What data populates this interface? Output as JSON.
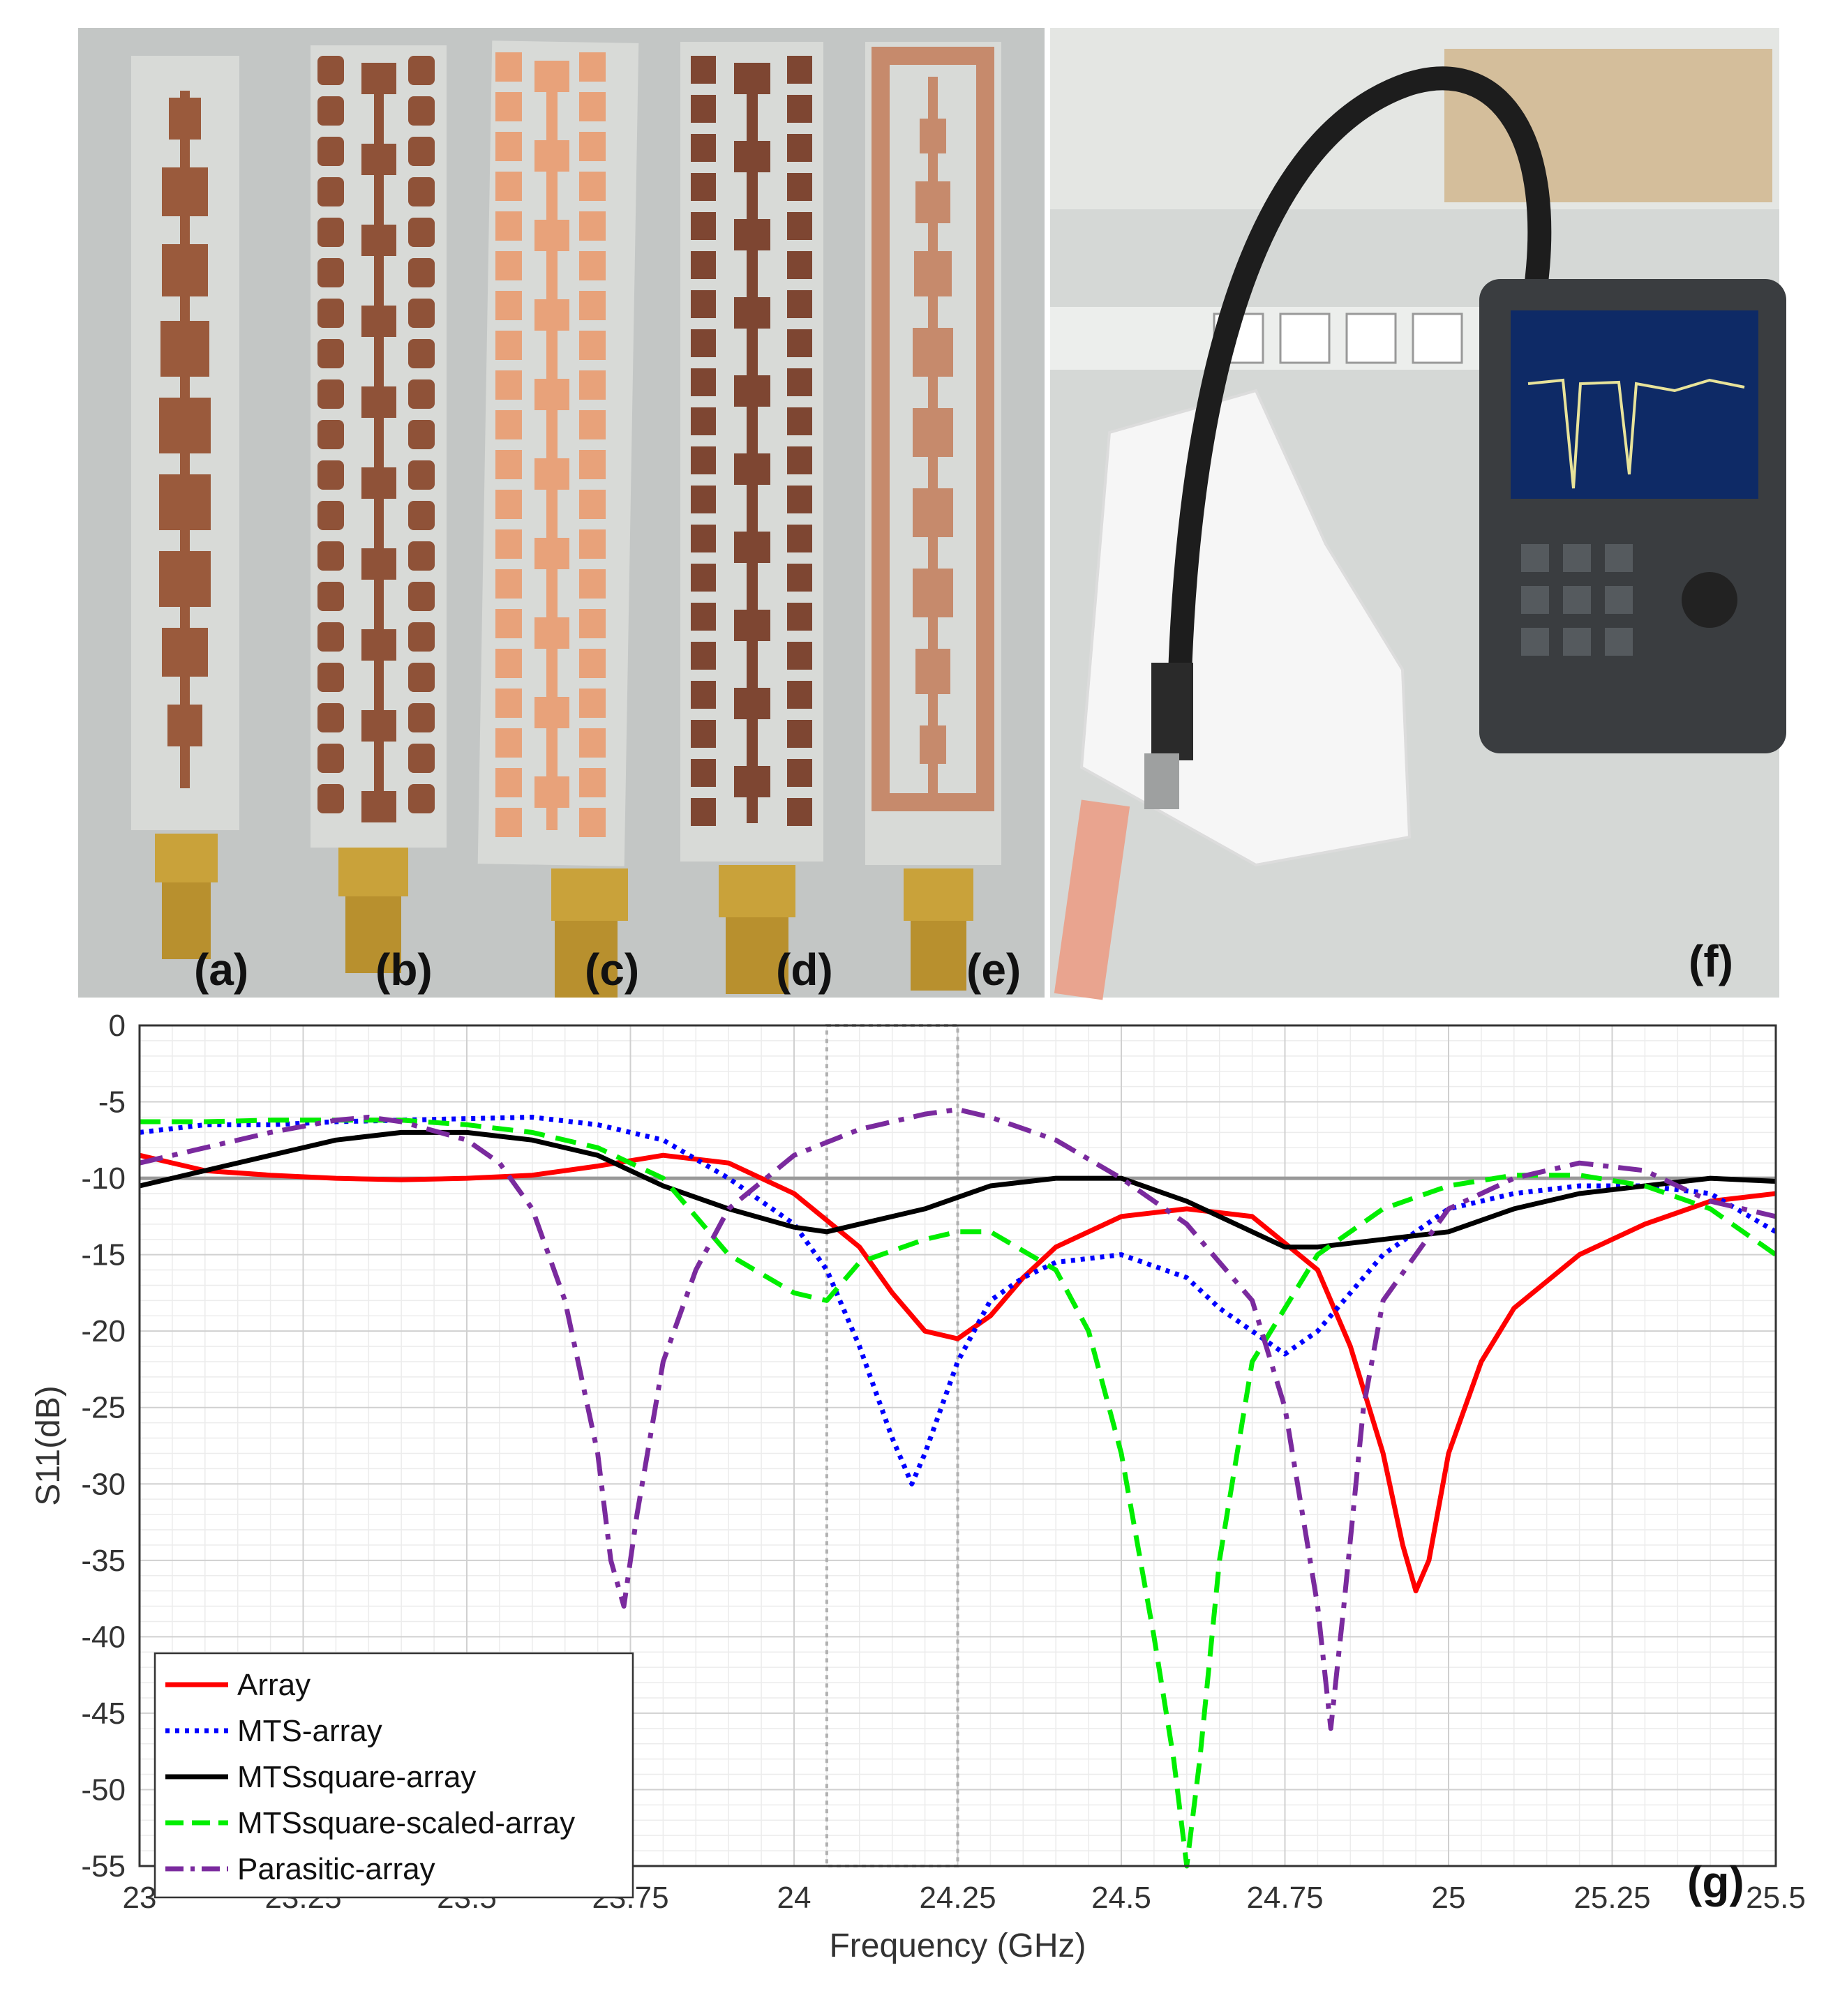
{
  "panel_labels": {
    "a": "(a)",
    "b": "(b)",
    "c": "(c)",
    "d": "(d)",
    "e": "(e)",
    "f": "(f)",
    "g": "(g)"
  },
  "colors": {
    "board": "#d9dcd8",
    "copper": "#9a5a3c",
    "copper_bright": "#e8a27a",
    "connector": "#c9a23a",
    "background_photo": "#c8ccca"
  },
  "chart_data": {
    "type": "line",
    "xlabel": "Frequency (GHz)",
    "ylabel": "S11(dB)",
    "xlim": [
      23,
      25.5
    ],
    "ylim": [
      -55,
      0
    ],
    "xticks": [
      "23",
      "23.25",
      "23.5",
      "23.75",
      "24",
      "24.25",
      "24.5",
      "24.75",
      "25",
      "25.25",
      "25.5"
    ],
    "yticks": [
      "0",
      "-5",
      "-10",
      "-15",
      "-20",
      "-25",
      "-30",
      "-35",
      "-40",
      "-45",
      "-50",
      "-55"
    ],
    "grid": true,
    "legend_position": "bottom-left",
    "reference_line": {
      "y": -10,
      "color": "#999999"
    },
    "highlight_band": {
      "x": [
        24.05,
        24.25
      ]
    },
    "series": [
      {
        "name": "Array",
        "color": "#ff0000",
        "dash": "solid",
        "x": [
          23,
          23.1,
          23.2,
          23.3,
          23.4,
          23.5,
          23.6,
          23.7,
          23.8,
          23.9,
          24.0,
          24.1,
          24.15,
          24.2,
          24.25,
          24.3,
          24.35,
          24.4,
          24.5,
          24.6,
          24.7,
          24.8,
          24.85,
          24.9,
          24.93,
          24.95,
          24.97,
          25.0,
          25.05,
          25.1,
          25.2,
          25.3,
          25.4,
          25.5
        ],
        "y": [
          -8.5,
          -9.5,
          -9.8,
          -10,
          -10.1,
          -10,
          -9.8,
          -9.2,
          -8.5,
          -9,
          -11,
          -14.5,
          -17.5,
          -20,
          -20.5,
          -19,
          -16.5,
          -14.5,
          -12.5,
          -12,
          -12.5,
          -16,
          -21,
          -28,
          -34,
          -37,
          -35,
          -28,
          -22,
          -18.5,
          -15,
          -13,
          -11.5,
          -11
        ]
      },
      {
        "name": "MTS-array",
        "color": "#0000ff",
        "dash": "dotted",
        "x": [
          23,
          23.1,
          23.2,
          23.3,
          23.4,
          23.5,
          23.6,
          23.7,
          23.8,
          23.9,
          24.0,
          24.05,
          24.1,
          24.15,
          24.18,
          24.2,
          24.25,
          24.3,
          24.35,
          24.4,
          24.5,
          24.6,
          24.65,
          24.7,
          24.75,
          24.8,
          24.9,
          25.0,
          25.1,
          25.2,
          25.3,
          25.4,
          25.5
        ],
        "y": [
          -7,
          -6.5,
          -6.5,
          -6.3,
          -6.2,
          -6.1,
          -6,
          -6.5,
          -7.5,
          -10,
          -13,
          -16,
          -21,
          -27,
          -30,
          -28,
          -22,
          -18,
          -16.5,
          -15.5,
          -15,
          -16.5,
          -18.5,
          -20,
          -21.5,
          -20,
          -15,
          -12,
          -11,
          -10.5,
          -10.5,
          -11,
          -13.5
        ]
      },
      {
        "name": "MTSsquare-array",
        "color": "#000000",
        "dash": "solid",
        "x": [
          23,
          23.1,
          23.2,
          23.3,
          23.4,
          23.5,
          23.6,
          23.7,
          23.8,
          23.9,
          24.0,
          24.05,
          24.1,
          24.2,
          24.3,
          24.4,
          24.5,
          24.6,
          24.7,
          24.75,
          24.8,
          24.9,
          25.0,
          25.1,
          25.2,
          25.3,
          25.4,
          25.5
        ],
        "y": [
          -10.5,
          -9.5,
          -8.5,
          -7.5,
          -7,
          -7,
          -7.5,
          -8.5,
          -10.5,
          -12,
          -13.2,
          -13.5,
          -13,
          -12,
          -10.5,
          -10,
          -10,
          -11.5,
          -13.5,
          -14.5,
          -14.5,
          -14,
          -13.5,
          -12,
          -11,
          -10.5,
          -10,
          -10.2
        ]
      },
      {
        "name": "MTSsquare-scaled-array",
        "color": "#00ee00",
        "dash": "dashed",
        "x": [
          23,
          23.1,
          23.2,
          23.3,
          23.4,
          23.5,
          23.6,
          23.7,
          23.8,
          23.85,
          23.9,
          24.0,
          24.05,
          24.1,
          24.2,
          24.25,
          24.3,
          24.4,
          24.45,
          24.5,
          24.55,
          24.58,
          24.6,
          24.62,
          24.65,
          24.7,
          24.8,
          24.9,
          25.0,
          25.1,
          25.2,
          25.3,
          25.4,
          25.5
        ],
        "y": [
          -6.3,
          -6.3,
          -6.2,
          -6.2,
          -6.2,
          -6.5,
          -7,
          -8,
          -10,
          -12.5,
          -15,
          -17.5,
          -18,
          -15.5,
          -14,
          -13.5,
          -13.5,
          -16,
          -20,
          -28,
          -40,
          -48,
          -55,
          -48,
          -35,
          -22,
          -15,
          -12,
          -10.5,
          -9.8,
          -9.8,
          -10.5,
          -12,
          -15
        ]
      },
      {
        "name": "Parasitic-array",
        "color": "#7a2a9e",
        "dash": "dashdot",
        "x": [
          23,
          23.1,
          23.2,
          23.3,
          23.35,
          23.4,
          23.5,
          23.55,
          23.6,
          23.65,
          23.7,
          23.72,
          23.74,
          23.76,
          23.8,
          23.85,
          23.9,
          24.0,
          24.1,
          24.2,
          24.25,
          24.3,
          24.4,
          24.5,
          24.6,
          24.7,
          24.75,
          24.8,
          24.82,
          24.84,
          24.87,
          24.9,
          25.0,
          25.1,
          25.2,
          25.3,
          25.4,
          25.5
        ],
        "y": [
          -9,
          -8,
          -7,
          -6.2,
          -6,
          -6.3,
          -7.5,
          -9,
          -12,
          -18,
          -28,
          -35,
          -38,
          -32,
          -22,
          -16,
          -12,
          -8.5,
          -6.8,
          -5.8,
          -5.5,
          -6,
          -7.5,
          -10,
          -13,
          -18,
          -25,
          -38,
          -46,
          -38,
          -25,
          -18,
          -12,
          -10,
          -9,
          -9.5,
          -11.5,
          -12.5
        ]
      }
    ]
  }
}
